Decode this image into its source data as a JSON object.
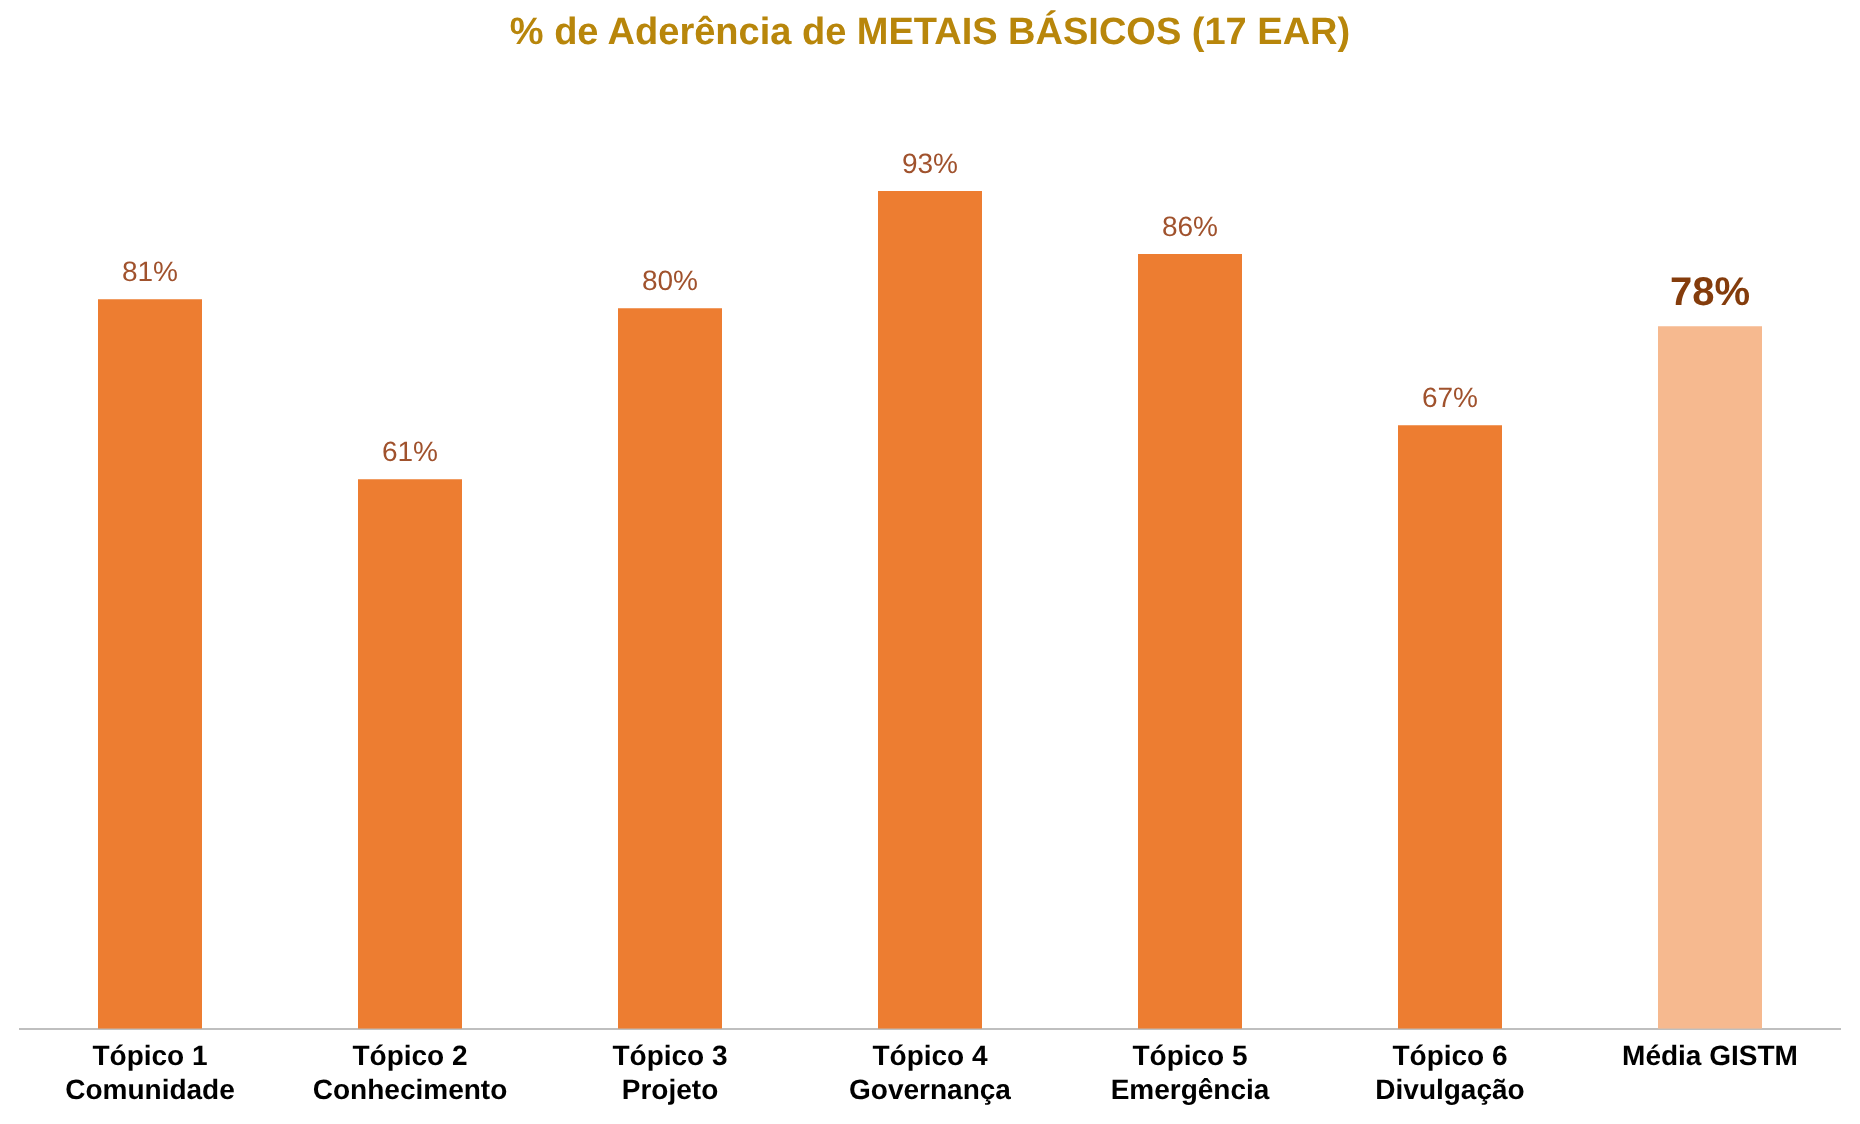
{
  "chart_data": {
    "type": "bar",
    "title": "% de Aderência de METAIS BÁSICOS (17 EAR)",
    "categories": [
      "Tópico 1\nComunidade",
      "Tópico 2\nConhecimento",
      "Tópico 3\nProjeto",
      "Tópico 4\nGovernança",
      "Tópico 5\nEmergência",
      "Tópico 6\nDivulgação",
      "Média GISTM"
    ],
    "values": [
      81,
      61,
      80,
      93,
      86,
      67,
      78
    ],
    "colors": [
      "#ed7d31",
      "#ed7d31",
      "#ed7d31",
      "#ed7d31",
      "#ed7d31",
      "#ed7d31",
      "#f6b98f"
    ],
    "value_labels": [
      "81%",
      "61%",
      "80%",
      "93%",
      "86%",
      "67%",
      "78%"
    ],
    "grid": false,
    "legend": false
  }
}
